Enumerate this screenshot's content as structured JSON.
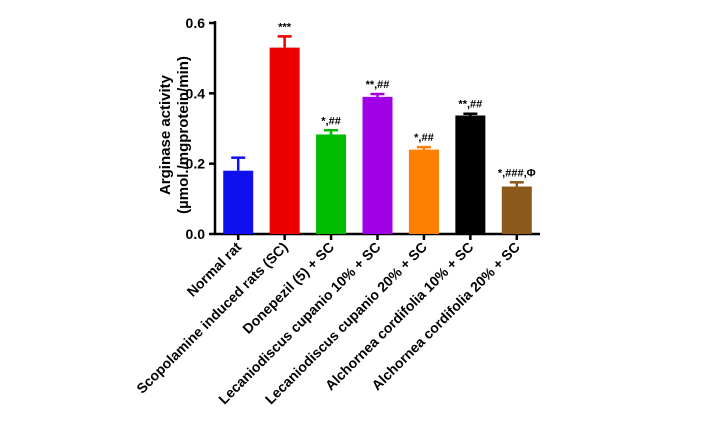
{
  "chart_data": {
    "type": "bar",
    "title": "",
    "xlabel": "",
    "ylabel_line1": "Arginase activity",
    "ylabel_line2": "(µmol./mgprotein/min)",
    "ylim": [
      0,
      0.6
    ],
    "yticks": [
      "0.0",
      "0.2",
      "0.4",
      "0.6"
    ],
    "ytick_values": [
      0,
      0.2,
      0.4,
      0.6
    ],
    "grid": false,
    "legend": "none",
    "categories": [
      "Normal rat",
      "Scopolamine induced rats (SC)",
      "Donepezil (5) + SC",
      "Lecaniodiscus cupanio 10% + SC",
      "Lecaniodiscus cupanio 20% + SC",
      "Alchornea cordifolia 10% + SC",
      "Alchornea cordifolia 20% + SC"
    ],
    "values": [
      0.18,
      0.53,
      0.283,
      0.39,
      0.24,
      0.337,
      0.135
    ],
    "errors": [
      0.037,
      0.032,
      0.012,
      0.008,
      0.007,
      0.005,
      0.012
    ],
    "significance": [
      "",
      "***",
      "*,##",
      "**,##",
      "*,##",
      "**,##",
      "*,###,Φ"
    ],
    "colors": [
      "#1010ee",
      "#ee0000",
      "#00bb00",
      "#a000e6",
      "#ff7f00",
      "#000000",
      "#8b5a1a"
    ]
  }
}
